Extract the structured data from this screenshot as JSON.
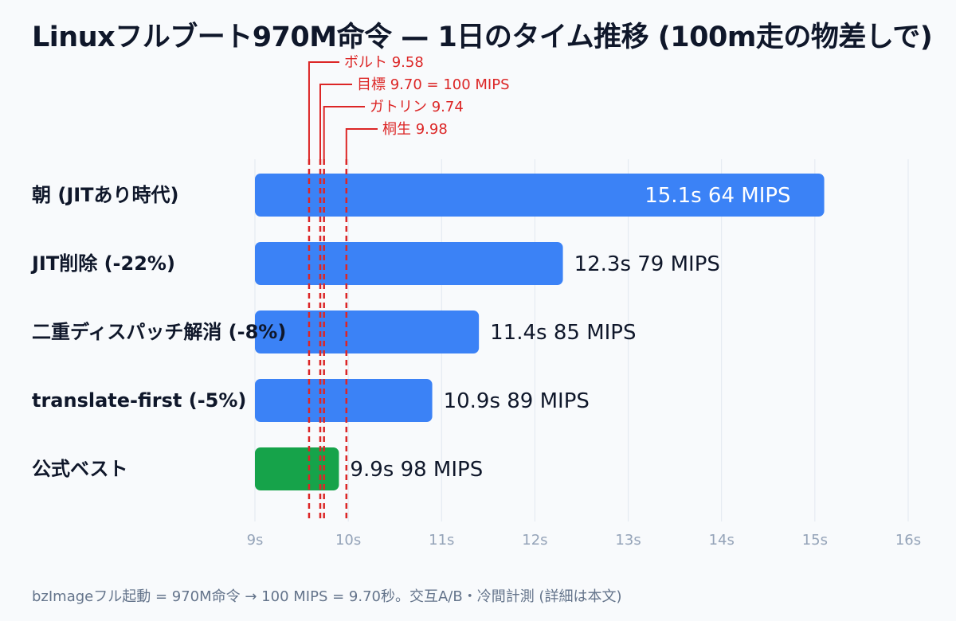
{
  "title": "Linuxフルブート970M命令 — 1日のタイム推移 (100m走の物差しで)",
  "footnote": "bzImageフル起動 = 970M命令 → 100 MIPS = 9.70秒。交互A/B・冷間計測 (詳細は本文)",
  "colors": {
    "bar": "#3b82f6",
    "best": "#16a34a",
    "refline": "#dc2626",
    "grid": "#e2e8f0",
    "tick": "#94a3b8",
    "text": "#0f172a",
    "inside_label": "#ffffff"
  },
  "chart_data": {
    "type": "bar",
    "orientation": "horizontal",
    "title": "Linuxフルブート970M命令 — 1日のタイム推移 (100m走の物差しで)",
    "xlabel": "",
    "ylabel": "",
    "xlim": [
      9,
      16
    ],
    "x_ticks": [
      9,
      10,
      11,
      12,
      13,
      14,
      15,
      16
    ],
    "x_tick_labels": [
      "9s",
      "10s",
      "11s",
      "12s",
      "13s",
      "14s",
      "15s",
      "16s"
    ],
    "grid": true,
    "categories": [
      "朝 (JITあり時代)",
      "JIT削除 (-22%)",
      "二重ディスパッチ解消 (-8%)",
      "translate-first (-5%)",
      "公式ベスト"
    ],
    "values": [
      15.1,
      12.3,
      11.4,
      10.9,
      9.9
    ],
    "value_labels": [
      "15.1s  64 MIPS",
      "12.3s  79 MIPS",
      "11.4s  85 MIPS",
      "10.9s  89 MIPS",
      "9.9s  98 MIPS"
    ],
    "highlight_index": 4,
    "reference_lines": [
      {
        "value": 9.58,
        "label": "ボルト 9.58"
      },
      {
        "value": 9.7,
        "label": "目標 9.70 = 100 MIPS"
      },
      {
        "value": 9.74,
        "label": "ガトリン 9.74"
      },
      {
        "value": 9.98,
        "label": "桐生 9.98"
      }
    ]
  }
}
